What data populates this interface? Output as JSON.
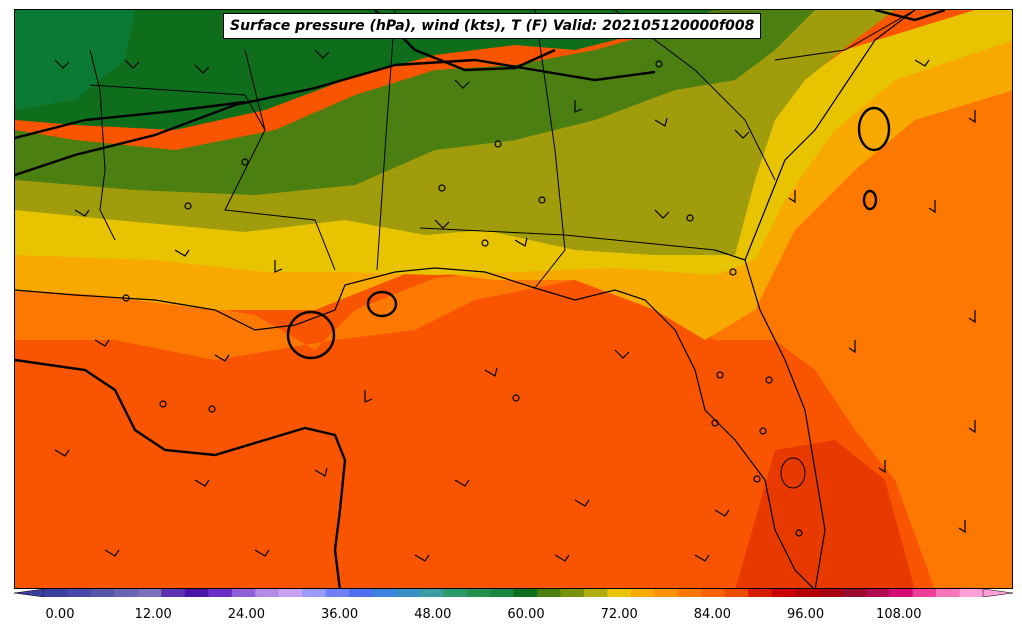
{
  "title": "Surface pressure (hPa), wind (kts), T (F) Valid: 202105120000f008",
  "colorbar": {
    "tick_labels": [
      "0.00",
      "12.00",
      "24.00",
      "36.00",
      "48.00",
      "60.00",
      "72.00",
      "84.00",
      "96.00",
      "108.00"
    ],
    "colors": [
      "#3b3f9c",
      "#474aa6",
      "#5656a8",
      "#6a64b2",
      "#7b6fba",
      "#5d32b0",
      "#4b14a8",
      "#6a2cc6",
      "#9160d8",
      "#b48ae6",
      "#c6a3f0",
      "#9a9af7",
      "#6e7ef3",
      "#4f6ef0",
      "#3d82de",
      "#3a8ec6",
      "#3c9ca4",
      "#2b9a68",
      "#23904e",
      "#1a8640",
      "#0f6e1c",
      "#4b7f11",
      "#7a9110",
      "#b0ad10",
      "#e8c400",
      "#f7a900",
      "#fb9000",
      "#fc7800",
      "#f96200",
      "#ec4c00",
      "#d61c00",
      "#c80000",
      "#b40000",
      "#a60012",
      "#9a0a2c",
      "#b00a50",
      "#d40c74",
      "#ef3e98",
      "#f574ba",
      "#fca0d6"
    ]
  },
  "map": {
    "temperature_field": "surface temperature (F), filled contours",
    "isobars": "surface pressure (hPa), black contours",
    "barbs": "wind (kts)",
    "colors": {
      "temp_56": "#0f6e1c",
      "temp_60": "#4b7f11",
      "temp_64": "#a09c0c",
      "temp_68": "#e8c400",
      "temp_72": "#f7a900",
      "temp_76": "#fc7800",
      "temp_80": "#f95500",
      "temp_84": "#e83a00",
      "forest_dark": "#0b7a34"
    }
  }
}
